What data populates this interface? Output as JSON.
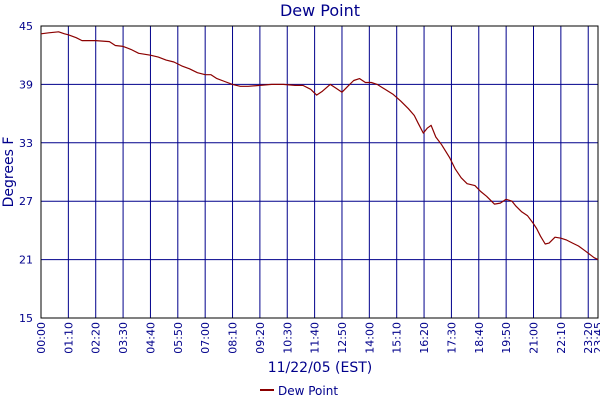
{
  "chart_data": {
    "type": "line",
    "title": "Dew Point",
    "ylabel": "Degrees F",
    "xlabel": "11/22/05 (EST)",
    "legend": {
      "position": "bottom",
      "entries": [
        "Dew Point"
      ]
    },
    "grid": true,
    "ylim": [
      15,
      45
    ],
    "y_ticks": [
      "45",
      "39",
      "33",
      "27",
      "21",
      "15"
    ],
    "x_range_minutes": [
      0,
      1425
    ],
    "x_ticks": [
      {
        "label": "00:00",
        "minute": 0
      },
      {
        "label": "01:10",
        "minute": 70
      },
      {
        "label": "02:20",
        "minute": 140
      },
      {
        "label": "03:30",
        "minute": 210
      },
      {
        "label": "04:40",
        "minute": 280
      },
      {
        "label": "05:50",
        "minute": 350
      },
      {
        "label": "07:00",
        "minute": 420
      },
      {
        "label": "08:10",
        "minute": 490
      },
      {
        "label": "09:20",
        "minute": 560
      },
      {
        "label": "10:30",
        "minute": 630
      },
      {
        "label": "11:40",
        "minute": 700
      },
      {
        "label": "12:50",
        "minute": 770
      },
      {
        "label": "14:00",
        "minute": 840
      },
      {
        "label": "15:10",
        "minute": 910
      },
      {
        "label": "16:20",
        "minute": 980
      },
      {
        "label": "17:30",
        "minute": 1050
      },
      {
        "label": "18:40",
        "minute": 1120
      },
      {
        "label": "19:50",
        "minute": 1190
      },
      {
        "label": "21:00",
        "minute": 1260
      },
      {
        "label": "22:10",
        "minute": 1330
      },
      {
        "label": "23:20",
        "minute": 1400
      },
      {
        "label": "23:45",
        "minute": 1425
      }
    ],
    "series": [
      {
        "name": "Dew Point",
        "color": "#8b0000",
        "points": [
          [
            0,
            44.2
          ],
          [
            20,
            44.3
          ],
          [
            45,
            44.4
          ],
          [
            60,
            44.2
          ],
          [
            70,
            44.1
          ],
          [
            90,
            43.8
          ],
          [
            105,
            43.5
          ],
          [
            140,
            43.5
          ],
          [
            175,
            43.4
          ],
          [
            190,
            43.0
          ],
          [
            210,
            42.9
          ],
          [
            230,
            42.6
          ],
          [
            250,
            42.2
          ],
          [
            280,
            42.0
          ],
          [
            300,
            41.8
          ],
          [
            320,
            41.5
          ],
          [
            340,
            41.3
          ],
          [
            360,
            40.9
          ],
          [
            380,
            40.6
          ],
          [
            400,
            40.2
          ],
          [
            420,
            40.0
          ],
          [
            435,
            40.0
          ],
          [
            450,
            39.6
          ],
          [
            470,
            39.3
          ],
          [
            490,
            39.0
          ],
          [
            510,
            38.8
          ],
          [
            530,
            38.8
          ],
          [
            560,
            38.9
          ],
          [
            590,
            39.0
          ],
          [
            620,
            39.0
          ],
          [
            650,
            38.9
          ],
          [
            670,
            38.9
          ],
          [
            690,
            38.5
          ],
          [
            705,
            37.9
          ],
          [
            720,
            38.3
          ],
          [
            740,
            39.0
          ],
          [
            755,
            38.6
          ],
          [
            770,
            38.2
          ],
          [
            785,
            38.8
          ],
          [
            800,
            39.4
          ],
          [
            815,
            39.6
          ],
          [
            830,
            39.2
          ],
          [
            845,
            39.2
          ],
          [
            860,
            39.0
          ],
          [
            880,
            38.5
          ],
          [
            900,
            38.0
          ],
          [
            920,
            37.3
          ],
          [
            940,
            36.5
          ],
          [
            955,
            35.8
          ],
          [
            965,
            35.0
          ],
          [
            978,
            34.0
          ],
          [
            988,
            34.5
          ],
          [
            998,
            34.8
          ],
          [
            1010,
            33.6
          ],
          [
            1025,
            32.8
          ],
          [
            1045,
            31.5
          ],
          [
            1060,
            30.3
          ],
          [
            1075,
            29.4
          ],
          [
            1090,
            28.8
          ],
          [
            1110,
            28.6
          ],
          [
            1125,
            28.0
          ],
          [
            1140,
            27.5
          ],
          [
            1160,
            26.7
          ],
          [
            1175,
            26.8
          ],
          [
            1190,
            27.2
          ],
          [
            1205,
            27.0
          ],
          [
            1215,
            26.5
          ],
          [
            1230,
            25.9
          ],
          [
            1245,
            25.5
          ],
          [
            1258,
            24.8
          ],
          [
            1268,
            24.2
          ],
          [
            1278,
            23.4
          ],
          [
            1290,
            22.6
          ],
          [
            1300,
            22.7
          ],
          [
            1315,
            23.3
          ],
          [
            1330,
            23.2
          ],
          [
            1345,
            23.0
          ],
          [
            1360,
            22.7
          ],
          [
            1375,
            22.4
          ],
          [
            1392,
            21.9
          ],
          [
            1405,
            21.5
          ],
          [
            1415,
            21.2
          ],
          [
            1425,
            21.0
          ]
        ]
      }
    ]
  }
}
